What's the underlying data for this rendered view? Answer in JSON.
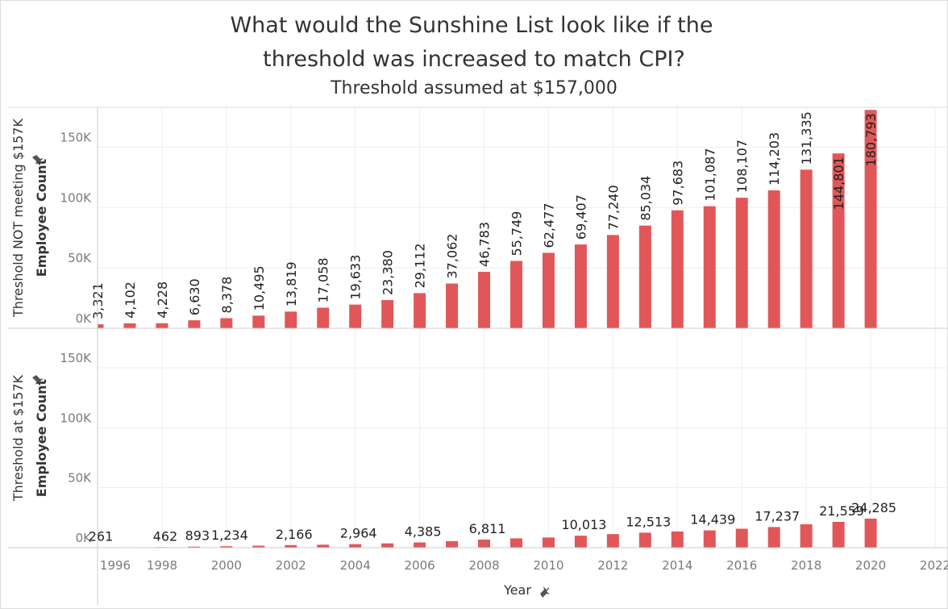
{
  "chart_data": [
    {
      "type": "bar",
      "title": [
        "What would the Sunshine List look like if the",
        "threshold was increased to match CPI?"
      ],
      "subtitle": "Threshold assumed at  $157,000",
      "row_label": "Threshold NOT meeting $157K",
      "y_label": "Employee Count",
      "color": "#e15759",
      "x": [
        1996,
        1997,
        1998,
        1999,
        2000,
        2001,
        2002,
        2003,
        2004,
        2005,
        2006,
        2007,
        2008,
        2009,
        2010,
        2011,
        2012,
        2013,
        2014,
        2015,
        2016,
        2017,
        2018,
        2019,
        2020
      ],
      "values": [
        3321,
        4102,
        4228,
        6630,
        8378,
        10495,
        13819,
        17058,
        19633,
        23380,
        29112,
        37062,
        46783,
        55749,
        62477,
        69407,
        77240,
        85034,
        97683,
        101087,
        108107,
        114203,
        131335,
        144801,
        180793
      ],
      "value_labels": [
        "3,321",
        "4,102",
        "4,228",
        "6,630",
        "8,378",
        "10,495",
        "13,819",
        "17,058",
        "19,633",
        "23,380",
        "29,112",
        "37,062",
        "46,783",
        "55,749",
        "62,477",
        "69,407",
        "77,240",
        "85,034",
        "97,683",
        "101,087",
        "108,107",
        "114,203",
        "131,335",
        "144,801",
        "180,793"
      ],
      "ylim": [
        0,
        183000
      ],
      "yticks": [
        {
          "value": 0,
          "label": "0K"
        },
        {
          "value": 50000,
          "label": "50K"
        },
        {
          "value": 100000,
          "label": "100K"
        },
        {
          "value": 150000,
          "label": "150K"
        }
      ],
      "grid": true
    },
    {
      "type": "bar",
      "row_label": "Threshold at $157K",
      "y_label": "Employee Count",
      "x_label": "Year",
      "color": "#e15759",
      "x": [
        1996,
        1997,
        1998,
        1999,
        2000,
        2001,
        2002,
        2003,
        2004,
        2005,
        2006,
        2007,
        2008,
        2009,
        2010,
        2011,
        2012,
        2013,
        2014,
        2015,
        2016,
        2017,
        2018,
        2019,
        2020
      ],
      "values": [
        261,
        350,
        462,
        893,
        1234,
        1700,
        2166,
        2500,
        2964,
        3600,
        4385,
        5500,
        6811,
        7800,
        8500,
        10013,
        11300,
        12513,
        13500,
        14439,
        15800,
        17237,
        19500,
        21559,
        24285
      ],
      "value_labels": [
        "261",
        null,
        "462",
        "893",
        "1,234",
        null,
        "2,166",
        null,
        "2,964",
        null,
        "4,385",
        null,
        "6,811",
        null,
        null,
        "10,013",
        null,
        "12,513",
        null,
        "14,439",
        null,
        "17,237",
        null,
        "21,559",
        "24,285"
      ],
      "ylim": [
        0,
        183000
      ],
      "yticks": [
        {
          "value": 0,
          "label": "0K"
        },
        {
          "value": 50000,
          "label": "50K"
        },
        {
          "value": 100000,
          "label": "100K"
        },
        {
          "value": 150000,
          "label": "150K"
        }
      ],
      "xlim": [
        1996,
        2022.4
      ],
      "xticks": [
        1996,
        1998,
        2000,
        2002,
        2004,
        2006,
        2008,
        2010,
        2012,
        2014,
        2016,
        2018,
        2020,
        2022
      ],
      "grid": true
    }
  ]
}
